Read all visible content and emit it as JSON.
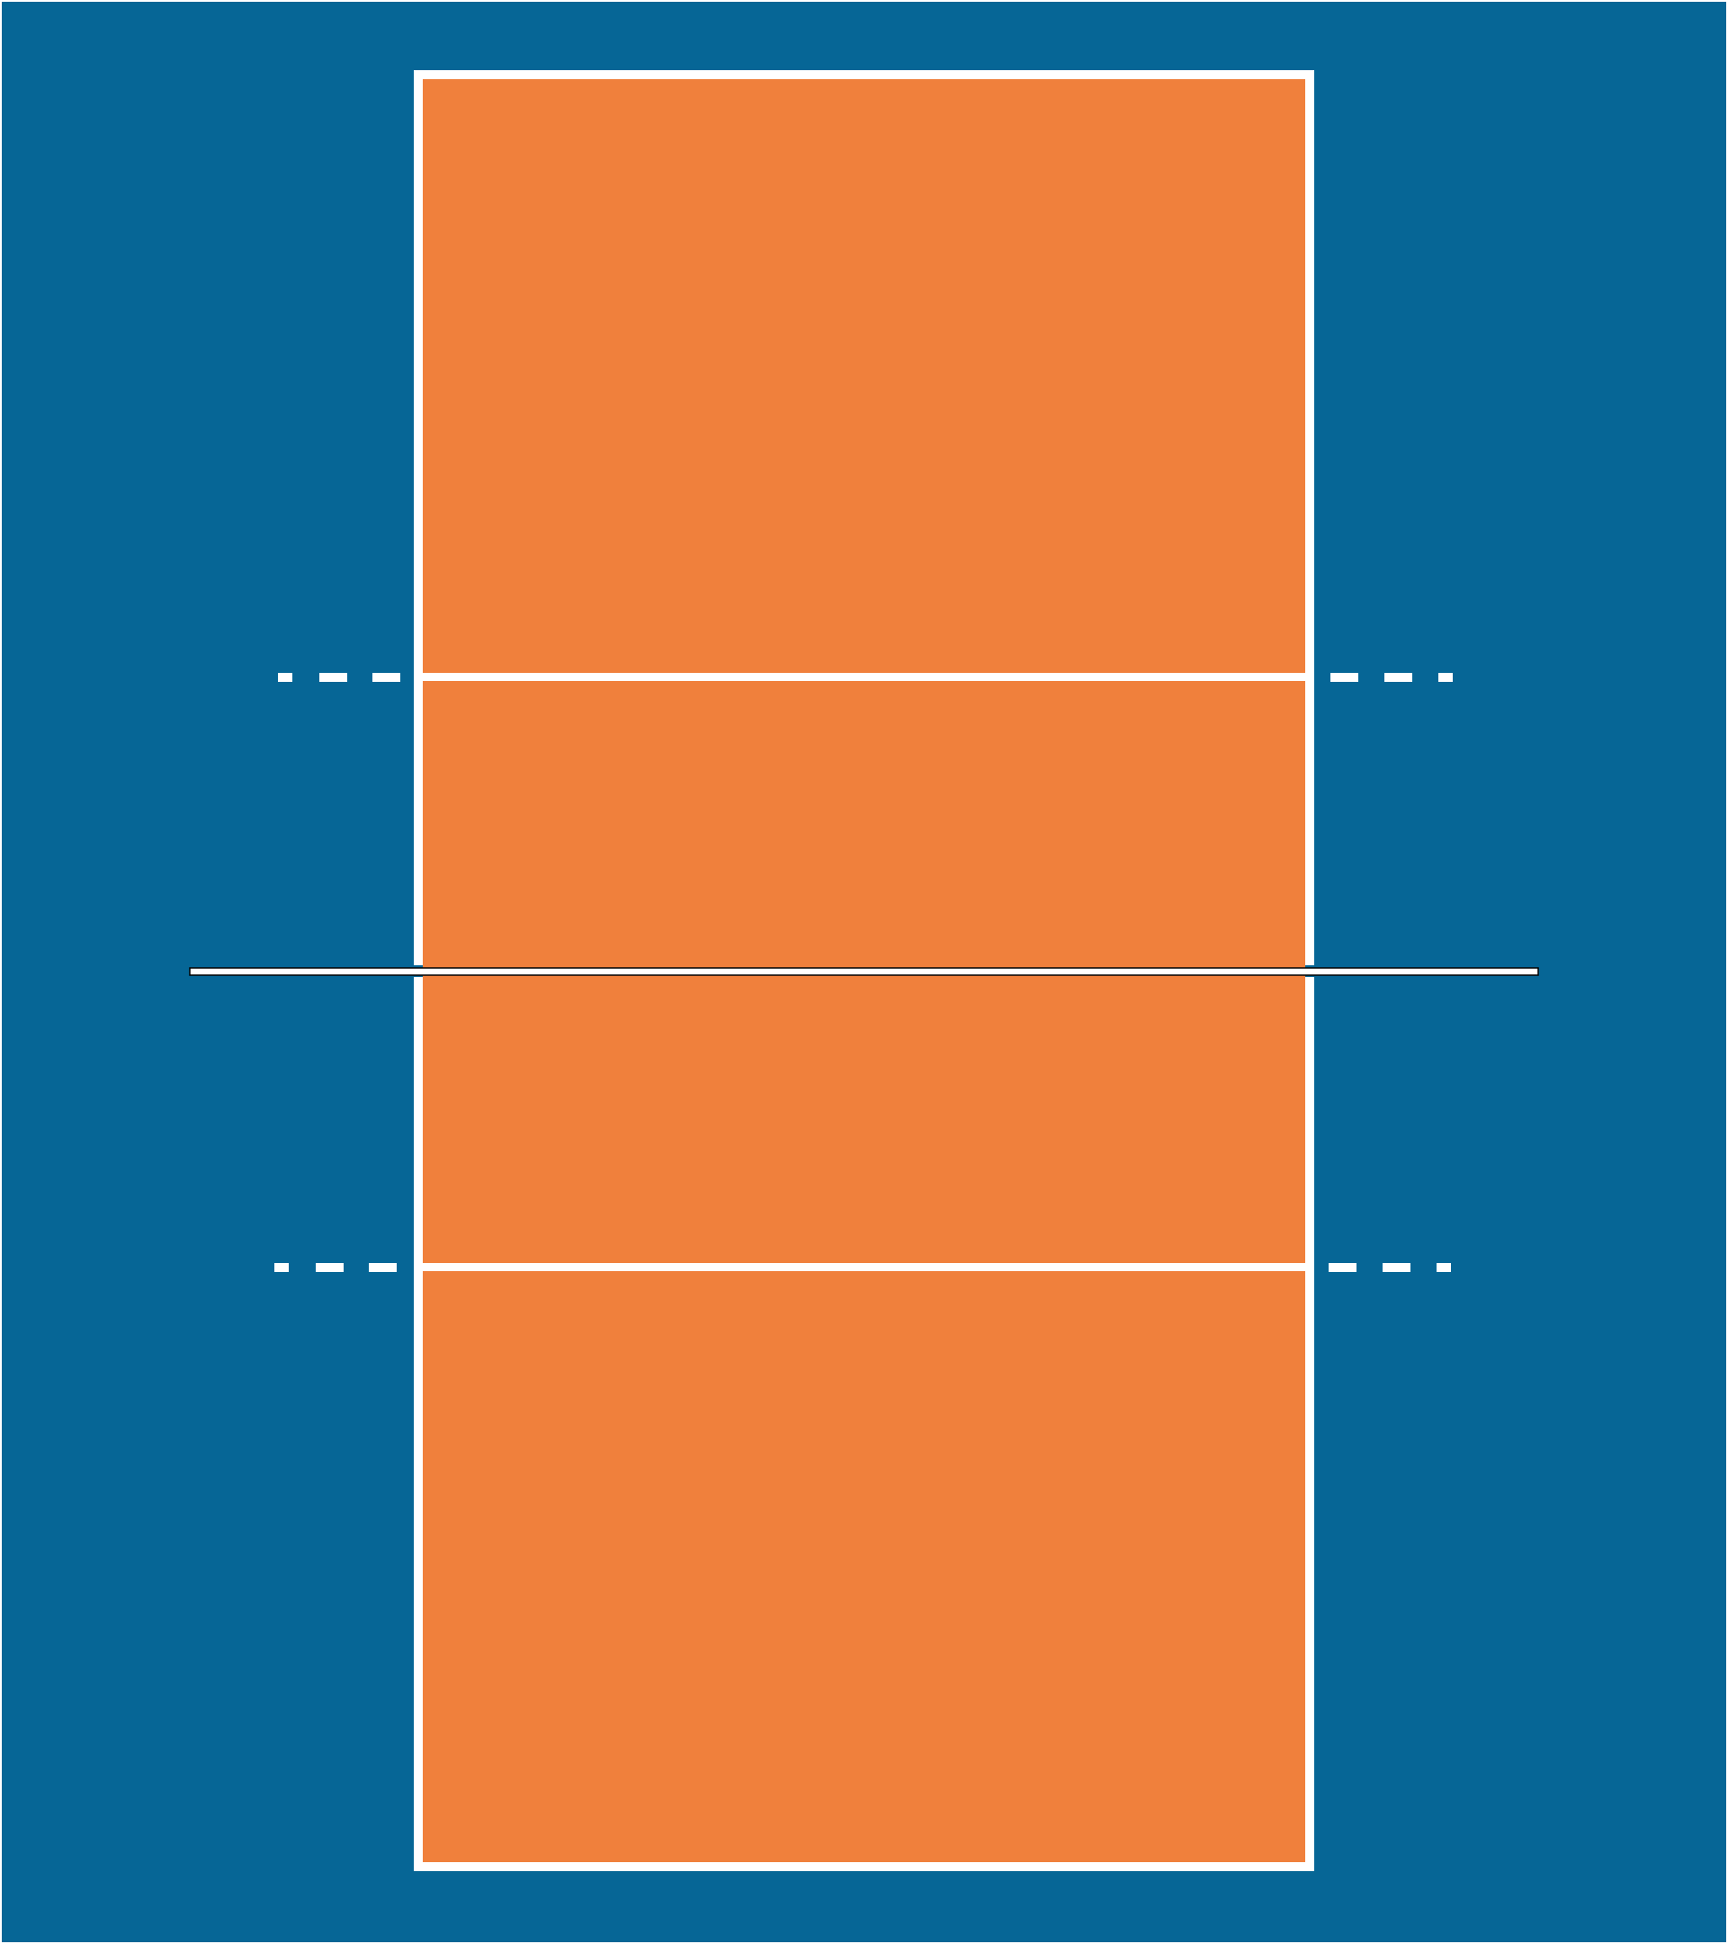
{
  "diagram": {
    "type": "volleyball-court",
    "view": "top-down",
    "colors": {
      "surround": "#066696",
      "court": "#f0803c",
      "lines": "#ffffff",
      "net_outline": "#000000"
    },
    "elements": [
      "court-boundary",
      "attack-line-top",
      "attack-line-bottom",
      "attack-line-extension-dashes",
      "net"
    ]
  }
}
